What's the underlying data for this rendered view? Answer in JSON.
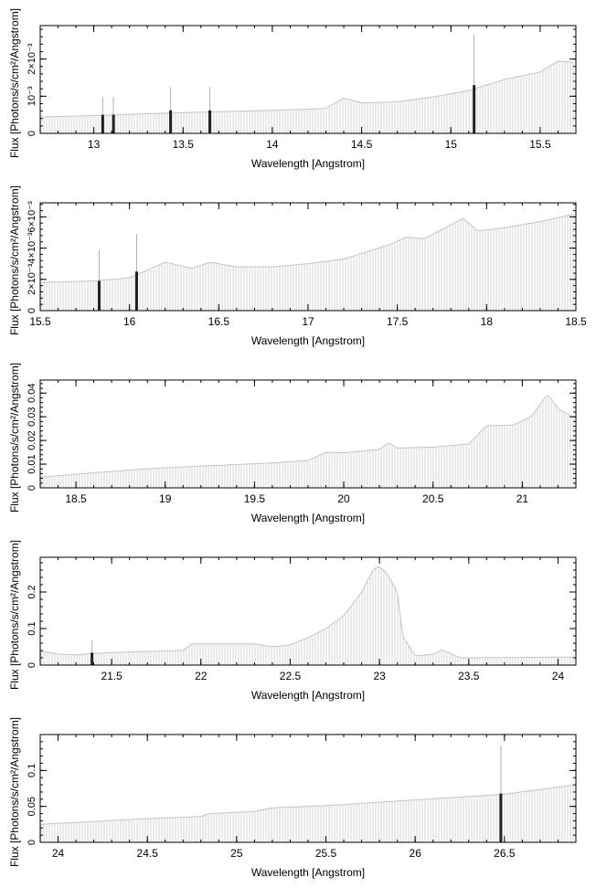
{
  "figure": {
    "panel_count": 5
  },
  "chart_data": [
    {
      "type": "bar",
      "xlabel": "Wavelength [Angstrom]",
      "ylabel": "Flux [Photons/s/cm²/Angstrom]",
      "xlim": [
        12.7,
        15.7
      ],
      "ylim": [
        0,
        0.0029
      ],
      "xticks": [
        13,
        13.5,
        14,
        14.5,
        15,
        15.5
      ],
      "xtick_labels": [
        "13",
        "13.5",
        "14",
        "14.5",
        "15",
        "15.5"
      ],
      "yticks": [
        0,
        0.001,
        0.002
      ],
      "ytick_labels": [
        "0",
        "10⁻³",
        "2×10⁻³"
      ],
      "continuum": [
        [
          12.7,
          0.00044
        ],
        [
          13.0,
          0.00048
        ],
        [
          13.3,
          0.00053
        ],
        [
          13.6,
          0.00057
        ],
        [
          14.0,
          0.00062
        ],
        [
          14.3,
          0.00067
        ],
        [
          14.4,
          0.00095
        ],
        [
          14.5,
          0.00082
        ],
        [
          14.7,
          0.00085
        ],
        [
          14.9,
          0.00098
        ],
        [
          15.1,
          0.00115
        ],
        [
          15.3,
          0.00145
        ],
        [
          15.5,
          0.00165
        ],
        [
          15.6,
          0.00195
        ],
        [
          15.7,
          0.0019
        ]
      ],
      "error_lines": [
        [
          13.05,
          0.00098
        ],
        [
          13.11,
          0.00098
        ],
        [
          13.43,
          0.00125
        ],
        [
          13.65,
          0.00125
        ],
        [
          15.13,
          0.00265
        ]
      ],
      "highlight_bars": [
        [
          13.05,
          0.0005
        ],
        [
          13.11,
          0.0005
        ],
        [
          13.43,
          0.00062
        ],
        [
          13.65,
          0.00062
        ],
        [
          15.13,
          0.0013
        ]
      ]
    },
    {
      "type": "bar",
      "xlabel": "Wavelength [Angstrom]",
      "ylabel": "Flux [Photons/s/cm²/Angstrom]",
      "xlim": [
        15.5,
        18.5
      ],
      "ylim": [
        0,
        0.0069
      ],
      "xticks": [
        15.5,
        16,
        16.5,
        17,
        17.5,
        18,
        18.5
      ],
      "xtick_labels": [
        "15.5",
        "16",
        "16.5",
        "17",
        "17.5",
        "18",
        "18.5"
      ],
      "yticks": [
        0,
        0.002,
        0.004,
        0.006
      ],
      "ytick_labels": [
        "0",
        "2×10⁻³",
        "4×10⁻³",
        "6×10⁻³"
      ],
      "continuum": [
        [
          15.5,
          0.0018
        ],
        [
          15.8,
          0.0019
        ],
        [
          16.0,
          0.0021
        ],
        [
          16.2,
          0.0031
        ],
        [
          16.35,
          0.0027
        ],
        [
          16.45,
          0.0031
        ],
        [
          16.6,
          0.0028
        ],
        [
          16.8,
          0.0028
        ],
        [
          17.0,
          0.003
        ],
        [
          17.2,
          0.0033
        ],
        [
          17.45,
          0.0042
        ],
        [
          17.55,
          0.0047
        ],
        [
          17.65,
          0.0046
        ],
        [
          17.75,
          0.0052
        ],
        [
          17.87,
          0.0059
        ],
        [
          17.95,
          0.0051
        ],
        [
          18.1,
          0.0053
        ],
        [
          18.3,
          0.0057
        ],
        [
          18.5,
          0.0062
        ]
      ],
      "error_lines": [
        [
          15.83,
          0.0039
        ],
        [
          16.04,
          0.0049
        ]
      ],
      "highlight_bars": [
        [
          15.83,
          0.0019
        ],
        [
          16.04,
          0.0025
        ]
      ]
    },
    {
      "type": "bar",
      "xlabel": "Wavelength [Angstrom]",
      "ylabel": "Flux [Photons/s/cm²/Angstrom]",
      "xlim": [
        18.3,
        21.3
      ],
      "ylim": [
        0,
        0.0455
      ],
      "xticks": [
        18.5,
        19,
        19.5,
        20,
        20.5,
        21
      ],
      "xtick_labels": [
        "18.5",
        "19",
        "19.5",
        "20",
        "20.5",
        "21"
      ],
      "yticks": [
        0,
        0.01,
        0.02,
        0.03,
        0.04
      ],
      "ytick_labels": [
        "0",
        "0.01",
        "0.02",
        "0.03",
        "0.04"
      ],
      "continuum": [
        [
          18.3,
          0.0045
        ],
        [
          18.5,
          0.0058
        ],
        [
          18.8,
          0.0075
        ],
        [
          19.0,
          0.0085
        ],
        [
          19.3,
          0.0095
        ],
        [
          19.6,
          0.0105
        ],
        [
          19.8,
          0.0115
        ],
        [
          19.9,
          0.015
        ],
        [
          20.0,
          0.0148
        ],
        [
          20.2,
          0.0162
        ],
        [
          20.25,
          0.019
        ],
        [
          20.3,
          0.0168
        ],
        [
          20.5,
          0.0172
        ],
        [
          20.7,
          0.0185
        ],
        [
          20.8,
          0.0262
        ],
        [
          20.95,
          0.0265
        ],
        [
          21.05,
          0.03
        ],
        [
          21.14,
          0.0395
        ],
        [
          21.2,
          0.0335
        ],
        [
          21.3,
          0.0292
        ]
      ],
      "error_lines": [],
      "highlight_bars": []
    },
    {
      "type": "bar",
      "xlabel": "Wavelength [Angstrom]",
      "ylabel": "Flux [Photons/s/cm²/Angstrom]",
      "xlim": [
        21.1,
        24.1
      ],
      "ylim": [
        0,
        0.295
      ],
      "xticks": [
        21.5,
        22,
        22.5,
        23,
        23.5,
        24
      ],
      "xtick_labels": [
        "21.5",
        "22",
        "22.5",
        "23",
        "23.5",
        "24"
      ],
      "yticks": [
        0,
        0.1,
        0.2
      ],
      "ytick_labels": [
        "0",
        "0.1",
        "0.2"
      ],
      "continuum": [
        [
          21.1,
          0.038
        ],
        [
          21.2,
          0.03
        ],
        [
          21.3,
          0.028
        ],
        [
          21.4,
          0.032
        ],
        [
          21.6,
          0.036
        ],
        [
          21.9,
          0.04
        ],
        [
          21.95,
          0.058
        ],
        [
          22.3,
          0.058
        ],
        [
          22.4,
          0.05
        ],
        [
          22.5,
          0.055
        ],
        [
          22.6,
          0.075
        ],
        [
          22.7,
          0.1
        ],
        [
          22.8,
          0.135
        ],
        [
          22.9,
          0.2
        ],
        [
          22.97,
          0.265
        ],
        [
          23.0,
          0.27
        ],
        [
          23.05,
          0.245
        ],
        [
          23.1,
          0.2
        ],
        [
          23.13,
          0.08
        ],
        [
          23.2,
          0.025
        ],
        [
          23.3,
          0.03
        ],
        [
          23.35,
          0.042
        ],
        [
          23.45,
          0.02
        ],
        [
          24.1,
          0.022
        ]
      ],
      "error_lines": [
        [
          21.39,
          0.068
        ]
      ],
      "highlight_bars": [
        [
          21.39,
          0.034
        ]
      ]
    },
    {
      "type": "bar",
      "xlabel": "Wavelength [Angstrom]",
      "ylabel": "Flux [Photons/s/cm²/Angstrom]",
      "xlim": [
        23.9,
        26.9
      ],
      "ylim": [
        0,
        0.15
      ],
      "xticks": [
        24,
        24.5,
        25,
        25.5,
        26,
        26.5
      ],
      "xtick_labels": [
        "24",
        "24.5",
        "25",
        "25.5",
        "26",
        "26.5"
      ],
      "yticks": [
        0,
        0.05,
        0.1
      ],
      "ytick_labels": [
        "0",
        "0.05",
        "0.1"
      ],
      "continuum": [
        [
          23.9,
          0.025
        ],
        [
          24.5,
          0.033
        ],
        [
          24.8,
          0.036
        ],
        [
          24.85,
          0.04
        ],
        [
          25.1,
          0.043
        ],
        [
          25.2,
          0.048
        ],
        [
          25.5,
          0.051
        ],
        [
          26.0,
          0.059
        ],
        [
          26.5,
          0.067
        ],
        [
          26.9,
          0.08
        ]
      ],
      "error_lines": [
        [
          26.48,
          0.135
        ]
      ],
      "highlight_bars": [
        [
          26.48,
          0.068
        ]
      ]
    }
  ]
}
